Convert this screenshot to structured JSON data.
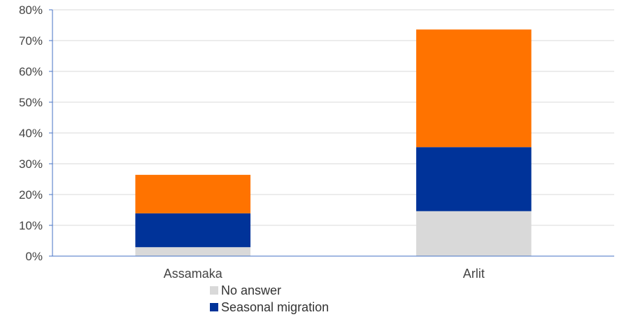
{
  "chart_data": {
    "type": "bar",
    "stacked": true,
    "categories": [
      "Assamaka",
      "Arlit"
    ],
    "series": [
      {
        "name": "No answer",
        "color": "#d9d9d9",
        "values": [
          2.9,
          14.6
        ]
      },
      {
        "name": "Seasonal migration",
        "color": "#003399",
        "values": [
          11.0,
          20.8
        ]
      },
      {
        "name": "",
        "color": "#ff7300",
        "values": [
          12.5,
          38.2
        ]
      }
    ],
    "ylim": [
      0,
      80
    ],
    "yticks": [
      "0%",
      "10%",
      "20%",
      "30%",
      "40%",
      "50%",
      "60%",
      "70%",
      "80%"
    ],
    "grid": true,
    "legend_position": "bottom"
  }
}
